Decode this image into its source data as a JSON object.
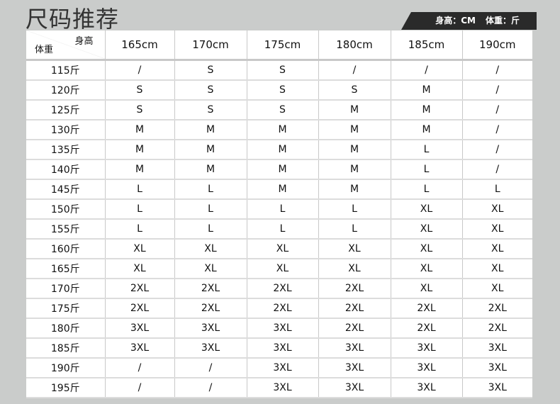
{
  "title": "尺码推荐",
  "units": {
    "height": "身高：CM",
    "weight": "体重：斤"
  },
  "corner": {
    "height_label": "身高",
    "weight_label": "体重"
  },
  "heights": [
    "165cm",
    "170cm",
    "175cm",
    "180cm",
    "185cm",
    "190cm"
  ],
  "rows": [
    {
      "weight": "115斤",
      "sizes": [
        "/",
        "S",
        "S",
        "/",
        "/",
        "/"
      ]
    },
    {
      "weight": "120斤",
      "sizes": [
        "S",
        "S",
        "S",
        "S",
        "M",
        "/"
      ]
    },
    {
      "weight": "125斤",
      "sizes": [
        "S",
        "S",
        "S",
        "M",
        "M",
        "/"
      ]
    },
    {
      "weight": "130斤",
      "sizes": [
        "M",
        "M",
        "M",
        "M",
        "M",
        "/"
      ]
    },
    {
      "weight": "135斤",
      "sizes": [
        "M",
        "M",
        "M",
        "M",
        "L",
        "/"
      ]
    },
    {
      "weight": "140斤",
      "sizes": [
        "M",
        "M",
        "M",
        "M",
        "L",
        "/"
      ]
    },
    {
      "weight": "145斤",
      "sizes": [
        "L",
        "L",
        "M",
        "M",
        "L",
        "L"
      ]
    },
    {
      "weight": "150斤",
      "sizes": [
        "L",
        "L",
        "L",
        "L",
        "XL",
        "XL"
      ]
    },
    {
      "weight": "155斤",
      "sizes": [
        "L",
        "L",
        "L",
        "L",
        "XL",
        "XL"
      ]
    },
    {
      "weight": "160斤",
      "sizes": [
        "XL",
        "XL",
        "XL",
        "XL",
        "XL",
        "XL"
      ]
    },
    {
      "weight": "165斤",
      "sizes": [
        "XL",
        "XL",
        "XL",
        "XL",
        "XL",
        "XL"
      ]
    },
    {
      "weight": "170斤",
      "sizes": [
        "2XL",
        "2XL",
        "2XL",
        "2XL",
        "XL",
        "XL"
      ]
    },
    {
      "weight": "175斤",
      "sizes": [
        "2XL",
        "2XL",
        "2XL",
        "2XL",
        "2XL",
        "2XL"
      ]
    },
    {
      "weight": "180斤",
      "sizes": [
        "3XL",
        "3XL",
        "3XL",
        "2XL",
        "2XL",
        "2XL"
      ]
    },
    {
      "weight": "185斤",
      "sizes": [
        "3XL",
        "3XL",
        "3XL",
        "3XL",
        "3XL",
        "3XL"
      ]
    },
    {
      "weight": "190斤",
      "sizes": [
        "/",
        "/",
        "3XL",
        "3XL",
        "3XL",
        "3XL"
      ]
    },
    {
      "weight": "195斤",
      "sizes": [
        "/",
        "/",
        "3XL",
        "3XL",
        "3XL",
        "3XL"
      ]
    }
  ]
}
